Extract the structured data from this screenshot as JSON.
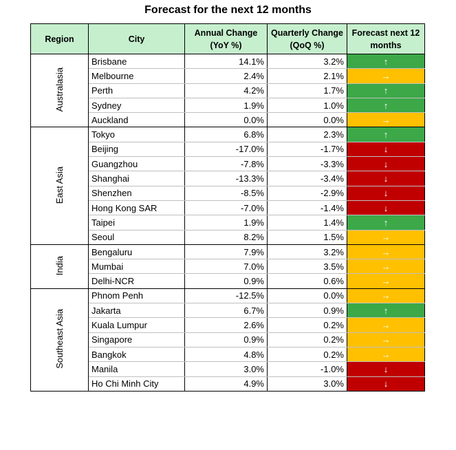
{
  "title": "Forecast for the next 12 months",
  "header": {
    "region": "Region",
    "city": "City",
    "annual": "Annual Change (YoY %)",
    "quarterly": "Quarterly Change (QoQ %)",
    "forecast": "Forecast next 12 months"
  },
  "forecast_colors": {
    "↑": "#3ca848",
    "→": "#ffc000",
    "↓": "#c00000"
  },
  "groups": [
    {
      "region": "Australasia",
      "rows": [
        {
          "city": "Brisbane",
          "annual": "14.1%",
          "quarterly": "3.2%",
          "forecast": "↑"
        },
        {
          "city": "Melbourne",
          "annual": "2.4%",
          "quarterly": "2.1%",
          "forecast": "→"
        },
        {
          "city": "Perth",
          "annual": "4.2%",
          "quarterly": "1.7%",
          "forecast": "↑"
        },
        {
          "city": "Sydney",
          "annual": "1.9%",
          "quarterly": "1.0%",
          "forecast": "↑"
        },
        {
          "city": "Auckland",
          "annual": "0.0%",
          "quarterly": "0.0%",
          "forecast": "→"
        }
      ]
    },
    {
      "region": "East Asia",
      "rows": [
        {
          "city": "Tokyo",
          "annual": "6.8%",
          "quarterly": "2.3%",
          "forecast": "↑"
        },
        {
          "city": "Beijing",
          "annual": "-17.0%",
          "quarterly": "-1.7%",
          "forecast": "↓"
        },
        {
          "city": "Guangzhou",
          "annual": "-7.8%",
          "quarterly": "-3.3%",
          "forecast": "↓"
        },
        {
          "city": "Shanghai",
          "annual": "-13.3%",
          "quarterly": "-3.4%",
          "forecast": "↓"
        },
        {
          "city": "Shenzhen",
          "annual": "-8.5%",
          "quarterly": "-2.9%",
          "forecast": "↓"
        },
        {
          "city": "Hong Kong SAR",
          "annual": "-7.0%",
          "quarterly": "-1.4%",
          "forecast": "↓"
        },
        {
          "city": "Taipei",
          "annual": "1.9%",
          "quarterly": "1.4%",
          "forecast": "↑"
        },
        {
          "city": "Seoul",
          "annual": "8.2%",
          "quarterly": "1.5%",
          "forecast": "→"
        }
      ]
    },
    {
      "region": "India",
      "rows": [
        {
          "city": "Bengaluru",
          "annual": "7.9%",
          "quarterly": "3.2%",
          "forecast": "→"
        },
        {
          "city": "Mumbai",
          "annual": "7.0%",
          "quarterly": "3.5%",
          "forecast": "→"
        },
        {
          "city": "Delhi-NCR",
          "annual": "0.9%",
          "quarterly": "0.6%",
          "forecast": "→"
        }
      ]
    },
    {
      "region": "Southeast Asia",
      "rows": [
        {
          "city": "Phnom Penh",
          "annual": "-12.5%",
          "quarterly": "0.0%",
          "forecast": "→"
        },
        {
          "city": "Jakarta",
          "annual": "6.7%",
          "quarterly": "0.9%",
          "forecast": "↑"
        },
        {
          "city": "Kuala Lumpur",
          "annual": "2.6%",
          "quarterly": "0.2%",
          "forecast": "→"
        },
        {
          "city": "Singapore",
          "annual": "0.9%",
          "quarterly": "0.2%",
          "forecast": "→"
        },
        {
          "city": "Bangkok",
          "annual": "4.8%",
          "quarterly": "0.2%",
          "forecast": "→"
        },
        {
          "city": "Manila",
          "annual": "3.0%",
          "quarterly": "-1.0%",
          "forecast": "↓"
        },
        {
          "city": "Ho Chi Minh City",
          "annual": "4.9%",
          "quarterly": "3.0%",
          "forecast": "↓"
        }
      ]
    }
  ]
}
